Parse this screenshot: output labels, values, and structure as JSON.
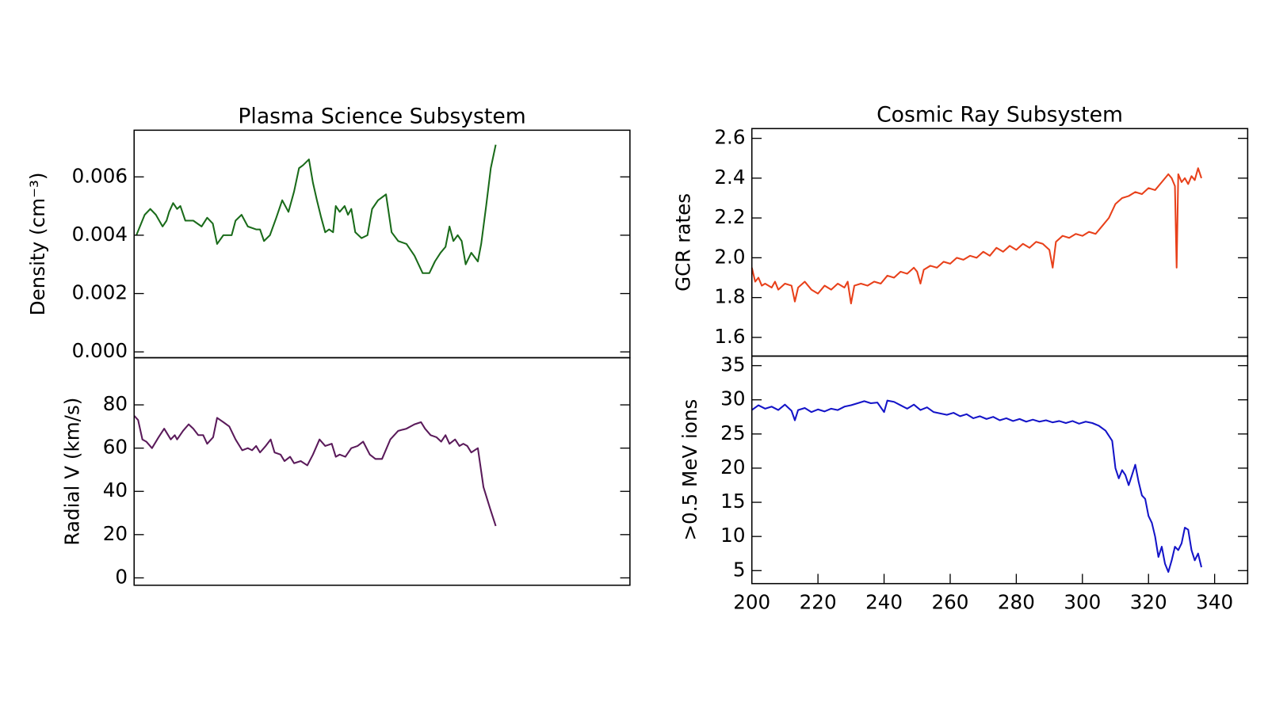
{
  "chart_data": [
    {
      "type": "line",
      "title": "Plasma Science Subsystem",
      "ylabel": "Density (cm⁻³)",
      "color": "#1a6b1a",
      "xlim": [
        200,
        350
      ],
      "ylim": [
        -0.0002,
        0.0076
      ],
      "yticks": [
        {
          "value": 0,
          "label": "0.000"
        },
        0.002,
        0.004,
        0.006
      ],
      "x": [
        200.7,
        203.2,
        204.9,
        206.6,
        208.6,
        209.8,
        210.6,
        211.8,
        213.0,
        214.0,
        215.5,
        217.9,
        220.4,
        222.1,
        223.8,
        225.1,
        227.0,
        229.5,
        230.7,
        232.5,
        234.4,
        236.9,
        238.1,
        239.3,
        241.1,
        243.0,
        244.8,
        246.7,
        248.4,
        249.9,
        251.1,
        252.9,
        254.1,
        255.3,
        256.6,
        257.8,
        259.0,
        260.2,
        261.0,
        262.2,
        263.7,
        264.7,
        265.7,
        266.9,
        268.8,
        270.6,
        272.0,
        273.8,
        276.2,
        277.9,
        279.9,
        282.4,
        284.8,
        287.3,
        289.3,
        291.0,
        292.7,
        294.2,
        295.4,
        296.6,
        297.9,
        299.1,
        300.3,
        302.0,
        304.0,
        305.0,
        306.5,
        307.9,
        309.4
      ],
      "values": [
        0.004,
        0.0047,
        0.0049,
        0.0047,
        0.0043,
        0.0045,
        0.0048,
        0.0051,
        0.0049,
        0.005,
        0.0045,
        0.0045,
        0.0043,
        0.0046,
        0.0044,
        0.0037,
        0.004,
        0.004,
        0.0045,
        0.0047,
        0.0043,
        0.0042,
        0.0042,
        0.0038,
        0.004,
        0.0046,
        0.0052,
        0.0048,
        0.0055,
        0.0063,
        0.0064,
        0.0066,
        0.0058,
        0.0052,
        0.0046,
        0.0041,
        0.0042,
        0.0041,
        0.005,
        0.0048,
        0.005,
        0.0047,
        0.0049,
        0.0041,
        0.0039,
        0.004,
        0.0049,
        0.0052,
        0.0054,
        0.0041,
        0.0038,
        0.0037,
        0.0033,
        0.0027,
        0.0027,
        0.0031,
        0.0034,
        0.0036,
        0.0043,
        0.0038,
        0.004,
        0.0038,
        0.003,
        0.0034,
        0.0031,
        0.0037,
        0.005,
        0.0063,
        0.0071
      ]
    },
    {
      "type": "line",
      "ylabel": "Radial V (km/s)",
      "color": "#5a1a5a",
      "xlim": [
        200,
        350
      ],
      "ylim": [
        -3.4,
        101.8
      ],
      "yticks": [
        0,
        20,
        40,
        60,
        80
      ],
      "x": [
        200,
        201.2,
        202.5,
        203.7,
        205.4,
        207.4,
        209.1,
        211.1,
        212.3,
        213.0,
        214.8,
        216.5,
        217.9,
        219.4,
        220.9,
        222.1,
        223.9,
        225.1,
        227.0,
        228.8,
        230.7,
        232.7,
        234.4,
        235.7,
        236.9,
        238.1,
        239.8,
        241.3,
        242.5,
        244.3,
        245.5,
        247.2,
        248.4,
        250.4,
        252.4,
        254.1,
        256.1,
        257.8,
        259.8,
        261.0,
        262.2,
        263.9,
        265.7,
        267.6,
        269.3,
        271.3,
        273.0,
        275.0,
        277.5,
        279.9,
        282.4,
        284.8,
        286.8,
        288.0,
        289.7,
        291.5,
        292.9,
        294.2,
        295.4,
        297.1,
        298.4,
        299.6,
        300.8,
        302.0,
        304.0,
        305.7,
        307.7,
        309.4
      ],
      "values": [
        75,
        73,
        64,
        63,
        60,
        65,
        69,
        64,
        66,
        64,
        68,
        71,
        69,
        66,
        66,
        62,
        65,
        74,
        72,
        70,
        64,
        59,
        60,
        59,
        61,
        58,
        61,
        64,
        58,
        57,
        54,
        56,
        53,
        54,
        52,
        57,
        64,
        61,
        62,
        56,
        57,
        56,
        60,
        61,
        63,
        57,
        55,
        55,
        64,
        68,
        69,
        71,
        72,
        69,
        66,
        65,
        63,
        66,
        62,
        64,
        61,
        62,
        61,
        58,
        60,
        42,
        32,
        24
      ]
    },
    {
      "type": "line",
      "title": "Cosmic Ray Subsystem",
      "ylabel": "GCR rates",
      "color": "#e8401a",
      "xlim": [
        200,
        350
      ],
      "ylim": [
        1.506,
        2.649
      ],
      "yticks": [
        1.6,
        1.8,
        {
          "value": 2,
          "label": "2.0"
        },
        2.2,
        2.4,
        2.6
      ],
      "x": [
        200,
        201,
        202,
        203,
        204,
        206,
        207,
        208,
        210,
        212,
        213,
        214,
        216,
        218,
        220,
        222,
        224,
        226,
        228,
        229,
        230,
        231,
        233,
        235,
        237,
        239,
        241,
        243,
        245,
        247,
        249,
        250,
        251,
        252,
        254,
        256,
        258,
        260,
        262,
        264,
        266,
        268,
        270,
        272,
        274,
        276,
        278,
        280,
        282,
        284,
        286,
        288,
        290,
        291,
        292,
        294,
        296,
        298,
        300,
        302,
        304,
        306,
        308,
        310,
        312,
        314,
        316,
        318,
        320,
        322,
        324,
        326,
        327,
        328,
        328.5,
        329,
        330,
        331,
        332,
        333,
        334,
        335,
        336
      ],
      "values": [
        1.95,
        1.88,
        1.9,
        1.86,
        1.87,
        1.85,
        1.88,
        1.84,
        1.87,
        1.86,
        1.78,
        1.85,
        1.88,
        1.84,
        1.82,
        1.86,
        1.84,
        1.87,
        1.85,
        1.88,
        1.77,
        1.86,
        1.87,
        1.86,
        1.88,
        1.87,
        1.91,
        1.9,
        1.93,
        1.92,
        1.95,
        1.93,
        1.87,
        1.94,
        1.96,
        1.95,
        1.98,
        1.97,
        2.0,
        1.99,
        2.01,
        2.0,
        2.03,
        2.01,
        2.05,
        2.03,
        2.06,
        2.04,
        2.07,
        2.05,
        2.08,
        2.07,
        2.04,
        1.95,
        2.08,
        2.11,
        2.1,
        2.12,
        2.11,
        2.13,
        2.12,
        2.16,
        2.2,
        2.27,
        2.3,
        2.31,
        2.33,
        2.32,
        2.35,
        2.34,
        2.38,
        2.42,
        2.4,
        2.36,
        1.95,
        2.42,
        2.38,
        2.4,
        2.37,
        2.41,
        2.39,
        2.45,
        2.4
      ]
    },
    {
      "type": "line",
      "ylabel": ">0.5 MeV ions",
      "color": "#1414c8",
      "xlim": [
        200,
        350
      ],
      "xticks": [
        200,
        220,
        240,
        260,
        280,
        300,
        320,
        340
      ],
      "ylim": [
        3.1,
        36.4
      ],
      "yticks": [
        5,
        10,
        15,
        20,
        25,
        30,
        35
      ],
      "x": [
        200,
        202,
        204,
        206,
        208,
        210,
        212,
        213,
        214,
        216,
        218,
        220,
        222,
        224,
        226,
        228,
        230,
        232,
        234,
        236,
        238,
        240,
        241,
        243,
        245,
        247,
        249,
        251,
        253,
        255,
        257,
        259,
        261,
        263,
        265,
        267,
        269,
        271,
        273,
        275,
        277,
        279,
        281,
        283,
        285,
        287,
        289,
        291,
        293,
        295,
        297,
        299,
        301,
        303,
        305,
        307,
        309,
        310,
        311,
        312,
        313,
        314,
        315,
        316,
        317,
        318,
        319,
        320,
        321,
        322,
        323,
        324,
        325,
        326,
        327,
        328,
        329,
        330,
        331,
        332,
        333,
        334,
        335,
        336
      ],
      "values": [
        28.5,
        29.2,
        28.7,
        29.0,
        28.5,
        29.3,
        28.4,
        27.0,
        28.5,
        28.8,
        28.2,
        28.6,
        28.3,
        28.7,
        28.5,
        29.0,
        29.2,
        29.5,
        29.8,
        29.5,
        29.6,
        28.2,
        29.9,
        29.7,
        29.2,
        28.7,
        29.3,
        28.5,
        28.9,
        28.2,
        28.0,
        27.8,
        28.1,
        27.6,
        27.9,
        27.3,
        27.6,
        27.2,
        27.5,
        27.0,
        27.3,
        26.9,
        27.2,
        26.8,
        27.1,
        26.8,
        27.0,
        26.7,
        26.9,
        26.6,
        26.9,
        26.5,
        26.8,
        26.6,
        26.2,
        25.5,
        24.0,
        20.0,
        18.5,
        19.7,
        19.0,
        17.5,
        19.0,
        20.5,
        18.0,
        16.0,
        15.5,
        13.0,
        12.0,
        10.0,
        7.0,
        8.5,
        6.0,
        4.8,
        6.5,
        8.5,
        8.0,
        9.0,
        11.3,
        11.0,
        8.0,
        6.5,
        7.5,
        5.5
      ]
    }
  ]
}
